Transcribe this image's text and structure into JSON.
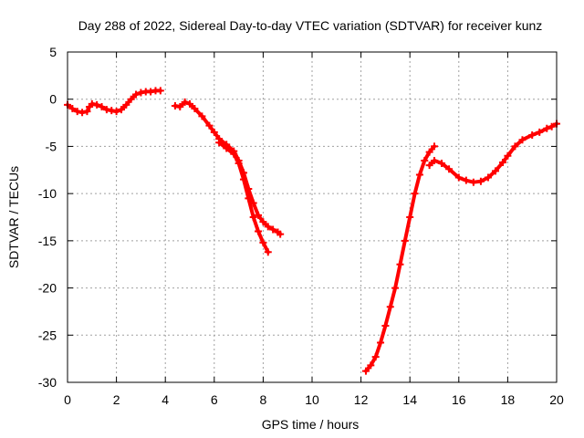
{
  "chart_data": {
    "type": "scatter",
    "title": "Day 288 of 2022, Sidereal Day-to-day VTEC variation (SDTVAR) for receiver kunz",
    "xlabel": "GPS time / hours",
    "ylabel": "SDTVAR / TECUs",
    "xlim": [
      0,
      20
    ],
    "ylim": [
      -30,
      5
    ],
    "x_ticks": [
      0,
      2,
      4,
      6,
      8,
      10,
      12,
      14,
      16,
      18,
      20
    ],
    "x_tick_labels": [
      "0",
      "2",
      "4",
      "6",
      "8",
      "10",
      "12",
      "14",
      "16",
      "18",
      "20"
    ],
    "y_ticks": [
      5,
      0,
      -5,
      -10,
      -15,
      -20,
      -25,
      -30
    ],
    "y_tick_labels": [
      "5",
      "0",
      "-5",
      "-10",
      "-15",
      "-20",
      "-25",
      "-30"
    ],
    "grid": true,
    "marker": "plus",
    "color": "#ff0000",
    "series": [
      {
        "name": "segment-1",
        "x": [
          0.0,
          0.2,
          0.4,
          0.6,
          0.8,
          0.9,
          1.0,
          1.2,
          1.4,
          1.6,
          1.8,
          2.0,
          2.2,
          2.4,
          2.6,
          2.8,
          3.0,
          3.2,
          3.4,
          3.6,
          3.8
        ],
        "y": [
          -0.6,
          -1.0,
          -1.3,
          -1.4,
          -1.3,
          -0.8,
          -0.5,
          -0.6,
          -0.8,
          -1.1,
          -1.2,
          -1.3,
          -1.1,
          -0.6,
          0.0,
          0.5,
          0.7,
          0.8,
          0.8,
          0.9,
          0.9
        ]
      },
      {
        "name": "segment-2",
        "x": [
          4.4,
          4.6,
          4.8,
          5.0,
          5.2,
          5.5,
          5.8,
          6.0,
          6.2,
          6.5,
          6.8,
          7.0,
          7.2,
          7.4,
          7.6,
          7.8,
          8.0,
          8.2,
          8.4,
          8.6,
          8.7
        ],
        "y": [
          -0.7,
          -0.8,
          -0.3,
          -0.5,
          -1.0,
          -1.8,
          -2.8,
          -3.5,
          -4.2,
          -4.8,
          -5.5,
          -6.5,
          -7.8,
          -9.5,
          -11.0,
          -12.3,
          -13.0,
          -13.5,
          -13.8,
          -14.1,
          -14.3
        ]
      },
      {
        "name": "segment-3",
        "x": [
          6.2,
          6.5,
          6.8,
          7.0,
          7.2,
          7.4,
          7.6,
          7.8,
          8.0,
          8.2
        ],
        "y": [
          -4.6,
          -5.2,
          -5.8,
          -6.8,
          -8.5,
          -10.5,
          -12.5,
          -14.0,
          -15.2,
          -16.2
        ]
      },
      {
        "name": "segment-4",
        "x": [
          12.2,
          12.4,
          12.6,
          12.8,
          13.0,
          13.2,
          13.4,
          13.6,
          13.8,
          14.0,
          14.2,
          14.4,
          14.6,
          14.8,
          15.0
        ],
        "y": [
          -28.8,
          -28.2,
          -27.3,
          -25.8,
          -24.0,
          -22.0,
          -20.0,
          -17.5,
          -15.0,
          -12.5,
          -10.0,
          -8.0,
          -6.5,
          -5.6,
          -5.0
        ]
      },
      {
        "name": "segment-5",
        "x": [
          14.8,
          15.0,
          15.3,
          15.6,
          16.0,
          16.3,
          16.6,
          16.9,
          17.2,
          17.5,
          17.8,
          18.0,
          18.3,
          18.6,
          19.0,
          19.3,
          19.6,
          19.8,
          20.0
        ],
        "y": [
          -7.0,
          -6.5,
          -6.8,
          -7.4,
          -8.3,
          -8.6,
          -8.8,
          -8.7,
          -8.3,
          -7.6,
          -6.7,
          -6.0,
          -5.0,
          -4.3,
          -3.8,
          -3.5,
          -3.1,
          -2.9,
          -2.6
        ]
      }
    ]
  }
}
